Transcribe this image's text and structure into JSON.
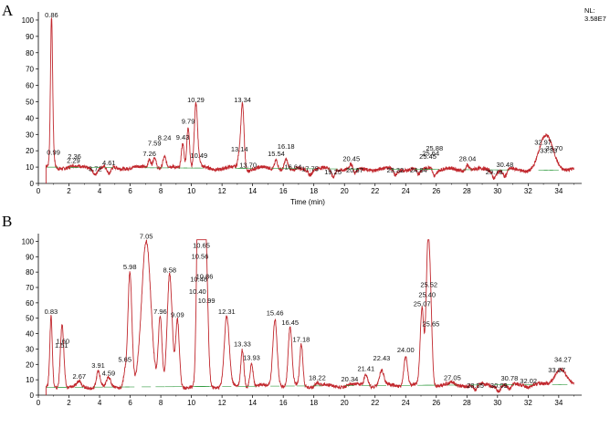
{
  "colors": {
    "trace": "#c1272d",
    "baseline": "#2e9a3e",
    "axis": "#000000",
    "nl": "#c1272d"
  },
  "chart_data": [
    {
      "panel": "A",
      "type": "line",
      "nl_label": "NL:",
      "nl_value": "3.58E7",
      "xlabel": "Time (min)",
      "ylabel": "",
      "xlim": [
        0,
        35.5
      ],
      "ylim": [
        0,
        105
      ],
      "xticks": [
        0,
        2,
        4,
        6,
        8,
        10,
        12,
        14,
        16,
        18,
        20,
        22,
        24,
        26,
        28,
        30,
        32,
        34
      ],
      "yticks": [
        0,
        10,
        20,
        30,
        40,
        50,
        60,
        70,
        80,
        90,
        100
      ],
      "baseline_start": 10,
      "baseline_end": 8,
      "peaks": [
        {
          "rt": 0.86,
          "h": 100,
          "label": "0.86",
          "w": 0.07
        },
        {
          "rt": 0.99,
          "h": 16,
          "label": "0.99",
          "w": 0.08
        },
        {
          "rt": 2.29,
          "h": 11,
          "label": "2.29",
          "w": 0.12
        },
        {
          "rt": 2.36,
          "h": 9,
          "label": "2.36",
          "w": 0.12
        },
        {
          "rt": 3.72,
          "h": 6,
          "label": "3.72",
          "w": 0.12
        },
        {
          "rt": 4.61,
          "h": 5,
          "label": "4.61",
          "w": 0.12
        },
        {
          "rt": 7.26,
          "h": 15,
          "label": "7.26",
          "w": 0.1
        },
        {
          "rt": 7.59,
          "h": 17,
          "label": "7.59",
          "w": 0.1
        },
        {
          "rt": 8.24,
          "h": 16,
          "label": "8.24",
          "w": 0.1
        },
        {
          "rt": 9.43,
          "h": 25,
          "label": "9.43",
          "w": 0.09
        },
        {
          "rt": 9.79,
          "h": 35,
          "label": "9.79",
          "w": 0.09
        },
        {
          "rt": 10.29,
          "h": 48,
          "label": "10.29",
          "w": 0.1
        },
        {
          "rt": 10.49,
          "h": 14,
          "label": "10.49",
          "w": 0.1
        },
        {
          "rt": 13.14,
          "h": 18,
          "label": "13.14",
          "w": 0.1
        },
        {
          "rt": 13.34,
          "h": 48,
          "label": "13.34",
          "w": 0.1
        },
        {
          "rt": 13.7,
          "h": 8,
          "label": "13.70",
          "w": 0.1
        },
        {
          "rt": 15.54,
          "h": 15,
          "label": "15.54",
          "w": 0.1
        },
        {
          "rt": 16.18,
          "h": 15,
          "label": "16.18",
          "w": 0.1
        },
        {
          "rt": 16.64,
          "h": 7,
          "label": "16.64",
          "w": 0.12
        },
        {
          "rt": 17.75,
          "h": 6,
          "label": "17.75",
          "w": 0.12
        },
        {
          "rt": 19.25,
          "h": 4,
          "label": "19.25",
          "w": 0.12
        },
        {
          "rt": 20.45,
          "h": 12,
          "label": "20.45",
          "w": 0.12
        },
        {
          "rt": 20.67,
          "h": 5,
          "label": "20.67",
          "w": 0.12
        },
        {
          "rt": 23.32,
          "h": 5,
          "label": "23.32",
          "w": 0.12
        },
        {
          "rt": 24.84,
          "h": 5,
          "label": "24.84",
          "w": 0.12
        },
        {
          "rt": 25.45,
          "h": 9,
          "label": "25.45",
          "w": 0.12
        },
        {
          "rt": 25.64,
          "h": 11,
          "label": "25.64",
          "w": 0.12
        },
        {
          "rt": 25.88,
          "h": 5,
          "label": "25.88",
          "w": 0.12
        },
        {
          "rt": 28.04,
          "h": 12,
          "label": "28.04",
          "w": 0.1
        },
        {
          "rt": 29.78,
          "h": 4,
          "label": "29.78",
          "w": 0.12
        },
        {
          "rt": 30.48,
          "h": 4,
          "label": "30.48",
          "w": 0.12
        },
        {
          "rt": 32.97,
          "h": 22,
          "label": "32.97",
          "w": 0.35
        },
        {
          "rt": 33.33,
          "h": 17,
          "label": "33.33",
          "w": 0.3
        },
        {
          "rt": 33.7,
          "h": 14,
          "label": "33.70",
          "w": 0.3
        }
      ]
    },
    {
      "panel": "B",
      "type": "line",
      "xlabel": "",
      "ylabel": "",
      "xlim": [
        0,
        35.5
      ],
      "ylim": [
        0,
        105
      ],
      "xticks": [
        0,
        2,
        4,
        6,
        8,
        10,
        12,
        14,
        16,
        18,
        20,
        22,
        24,
        26,
        28,
        30,
        32,
        34
      ],
      "yticks": [
        0,
        10,
        20,
        30,
        40,
        50,
        60,
        70,
        80,
        90,
        100
      ],
      "baseline_start": 5,
      "baseline_end": 7,
      "peaks": [
        {
          "rt": 0.83,
          "h": 51,
          "label": "0.83",
          "w": 0.08
        },
        {
          "rt": 1.51,
          "h": 29,
          "label": "1.51",
          "w": 0.1
        },
        {
          "rt": 1.6,
          "h": 27,
          "label": "1.60",
          "w": 0.1
        },
        {
          "rt": 2.67,
          "h": 9,
          "label": "2.67",
          "w": 0.12
        },
        {
          "rt": 3.91,
          "h": 16,
          "label": "3.91",
          "w": 0.12
        },
        {
          "rt": 4.59,
          "h": 11,
          "label": "4.59",
          "w": 0.12
        },
        {
          "rt": 5.65,
          "h": 15,
          "label": "5.65",
          "w": 0.1
        },
        {
          "rt": 5.98,
          "h": 80,
          "label": "5.98",
          "w": 0.13
        },
        {
          "rt": 7.05,
          "h": 100,
          "label": "7.05",
          "w": 0.3
        },
        {
          "rt": 7.96,
          "h": 51,
          "label": "7.96",
          "w": 0.12
        },
        {
          "rt": 8.58,
          "h": 78,
          "label": "8.58",
          "w": 0.16
        },
        {
          "rt": 9.09,
          "h": 49,
          "label": "9.09",
          "w": 0.12
        },
        {
          "rt": 10.4,
          "h": 64,
          "label": "10.40",
          "w": 0.1
        },
        {
          "rt": 10.48,
          "h": 72,
          "label": "10.48",
          "w": 0.1
        },
        {
          "rt": 10.56,
          "h": 87,
          "label": "10.56",
          "w": 0.1
        },
        {
          "rt": 10.65,
          "h": 94,
          "label": "10.65",
          "w": 0.12
        },
        {
          "rt": 10.86,
          "h": 69,
          "label": "10.86",
          "w": 0.12
        },
        {
          "rt": 10.99,
          "h": 58,
          "label": "10.99",
          "w": 0.12
        },
        {
          "rt": 12.31,
          "h": 51,
          "label": "12.31",
          "w": 0.16
        },
        {
          "rt": 13.33,
          "h": 30,
          "label": "13.33",
          "w": 0.1
        },
        {
          "rt": 13.93,
          "h": 21,
          "label": "13.93",
          "w": 0.1
        },
        {
          "rt": 15.46,
          "h": 50,
          "label": "15.46",
          "w": 0.14
        },
        {
          "rt": 16.45,
          "h": 44,
          "label": "16.45",
          "w": 0.12
        },
        {
          "rt": 17.18,
          "h": 33,
          "label": "17.18",
          "w": 0.1
        },
        {
          "rt": 18.22,
          "h": 8,
          "label": "18.22",
          "w": 0.12
        },
        {
          "rt": 20.34,
          "h": 7,
          "label": "20.34",
          "w": 0.12
        },
        {
          "rt": 21.41,
          "h": 14,
          "label": "21.41",
          "w": 0.12
        },
        {
          "rt": 22.43,
          "h": 16,
          "label": "22.43",
          "w": 0.14
        },
        {
          "rt": 24.0,
          "h": 26,
          "label": "24.00",
          "w": 0.12
        },
        {
          "rt": 25.07,
          "h": 56,
          "label": "25.07",
          "w": 0.12
        },
        {
          "rt": 25.4,
          "h": 62,
          "label": "25.40",
          "w": 0.1
        },
        {
          "rt": 25.52,
          "h": 59,
          "label": "25.52",
          "w": 0.1
        },
        {
          "rt": 25.65,
          "h": 43,
          "label": "25.65",
          "w": 0.1
        },
        {
          "rt": 27.05,
          "h": 8,
          "label": "27.05",
          "w": 0.12
        },
        {
          "rt": 28.55,
          "h": 3,
          "label": "28.55",
          "w": 0.12
        },
        {
          "rt": 30.09,
          "h": 3,
          "label": "30.09",
          "w": 0.12
        },
        {
          "rt": 30.78,
          "h": 3,
          "label": "30.78",
          "w": 0.12
        },
        {
          "rt": 32.02,
          "h": 6,
          "label": "32.02",
          "w": 0.12
        },
        {
          "rt": 33.87,
          "h": 13,
          "label": "33.87",
          "w": 0.25
        },
        {
          "rt": 34.27,
          "h": 15,
          "label": "34.27",
          "w": 0.25
        }
      ]
    }
  ]
}
